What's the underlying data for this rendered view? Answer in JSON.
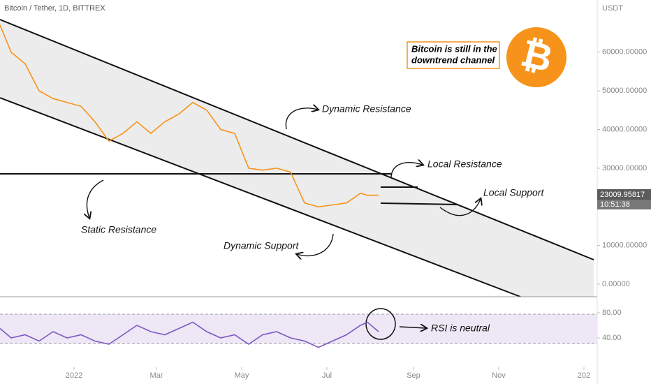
{
  "header": "Bitcoin / Tether, 1D, BITTREX",
  "currency": "USDT",
  "callout": [
    "Bitcoin is still in the",
    "downtrend channel"
  ],
  "logo": "₿",
  "price_label": {
    "price": "23009.95817",
    "time": "10:51:38"
  },
  "annotations": [
    "Dynamic Resistance",
    "Local Resistance",
    "Local Support",
    "Static Resistance",
    "Dynamic Support",
    "RSI is neutral"
  ],
  "chart_data": [
    {
      "type": "line",
      "color": "#f7931a",
      "xlim": [
        -53,
        372
      ],
      "ylim": [
        -3250,
        73500
      ],
      "x": [
        -53,
        -45,
        -35,
        -25,
        -15,
        -5,
        5,
        15,
        25,
        35,
        45,
        55,
        65,
        75,
        85,
        95,
        105,
        115,
        125,
        135,
        145,
        155,
        165,
        175,
        185,
        195,
        205,
        210,
        218
      ],
      "values": [
        67000,
        60000,
        57000,
        50000,
        48000,
        47000,
        46000,
        42000,
        37000,
        39000,
        42000,
        39000,
        42000,
        44000,
        47000,
        45000,
        40000,
        39000,
        30000,
        29500,
        30000,
        29000,
        21000,
        20000,
        20500,
        21000,
        23500,
        23000,
        23010
      ],
      "yticks": [
        {
          "value": 0,
          "label": "0.00000"
        },
        {
          "value": 10000,
          "label": "10000.00000"
        },
        {
          "value": 30000,
          "label": "30000.00000"
        },
        {
          "value": 40000,
          "label": "40000.00000"
        },
        {
          "value": 50000,
          "label": "50000.00000"
        },
        {
          "value": 60000,
          "label": "60000.00000"
        }
      ]
    },
    {
      "type": "line",
      "color": "#7e57c2",
      "xlim": [
        -53,
        372
      ],
      "ylim": [
        0,
        100
      ],
      "x": [
        -53,
        -45,
        -35,
        -25,
        -15,
        -5,
        5,
        15,
        25,
        35,
        45,
        55,
        65,
        75,
        85,
        95,
        105,
        115,
        125,
        135,
        145,
        155,
        165,
        175,
        185,
        195,
        205,
        210,
        218
      ],
      "values": [
        55,
        40,
        45,
        35,
        50,
        40,
        45,
        35,
        30,
        45,
        60,
        50,
        45,
        55,
        65,
        50,
        40,
        45,
        30,
        45,
        50,
        40,
        35,
        25,
        35,
        45,
        60,
        65,
        50
      ],
      "yticks": [
        {
          "value": 40,
          "label": "40.00"
        },
        {
          "value": 80,
          "label": "80.00"
        }
      ],
      "xticks": [
        {
          "value": 0,
          "label": "2022"
        },
        {
          "value": 59,
          "label": "Mar"
        },
        {
          "value": 120,
          "label": "May"
        },
        {
          "value": 181,
          "label": "Jul"
        },
        {
          "value": 243,
          "label": "Sep"
        },
        {
          "value": 304,
          "label": "Nov"
        },
        {
          "value": 365,
          "label": "202"
        }
      ]
    }
  ]
}
